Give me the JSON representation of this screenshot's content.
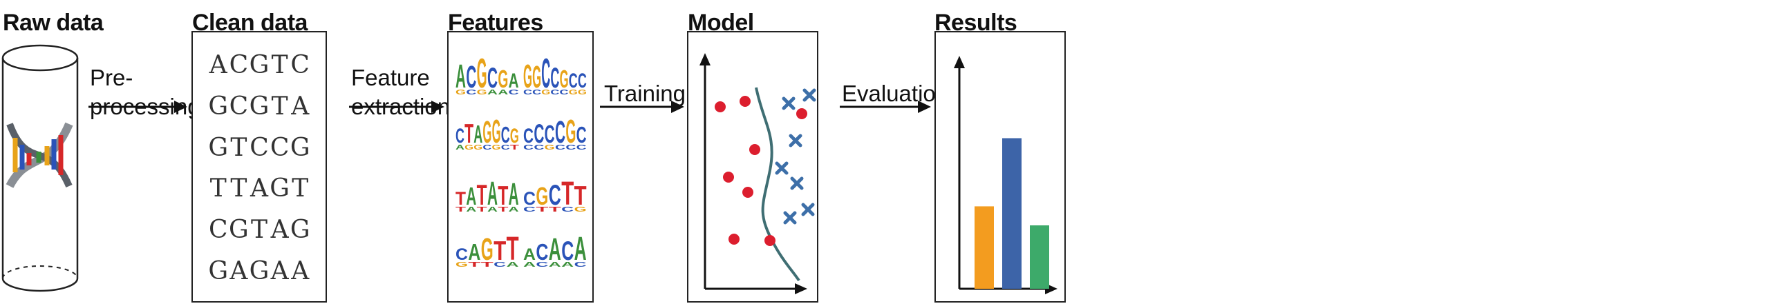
{
  "stages": {
    "raw": {
      "title": "Raw data"
    },
    "clean": {
      "title": "Clean data"
    },
    "features": {
      "title": "Features"
    },
    "model": {
      "title": "Model"
    },
    "results": {
      "title": "Results"
    }
  },
  "transitions": {
    "preprocessing": {
      "line1": "Pre-",
      "line2": "processing"
    },
    "feature_extraction": {
      "line1": "Feature",
      "line2": "extraction"
    },
    "training": {
      "line1": "Training"
    },
    "evaluation": {
      "line1": "Evaluation"
    }
  },
  "sequences": [
    [
      "A",
      "C",
      "G",
      "T",
      "C"
    ],
    [
      "G",
      "C",
      "G",
      "T",
      "A"
    ],
    [
      "G",
      "T",
      "C",
      "C",
      "G"
    ],
    [
      "T",
      "T",
      "A",
      "G",
      "T"
    ],
    [
      "C",
      "G",
      "T",
      "A",
      "G"
    ],
    [
      "G",
      "A",
      "G",
      "A",
      "A"
    ]
  ],
  "motifs": [
    [
      [
        "A",
        "#3b8f3b"
      ],
      [
        "C",
        "#2a53b8"
      ],
      [
        "G",
        "#e8a319"
      ],
      [
        "C",
        "#2a53b8"
      ],
      [
        "G",
        "#e8a319"
      ],
      [
        "A",
        "#3b8f3b"
      ]
    ],
    [
      [
        "G",
        "#e8a319"
      ],
      [
        "G",
        "#e8a319"
      ],
      [
        "C",
        "#2a53b8"
      ],
      [
        "C",
        "#2a53b8"
      ],
      [
        "G",
        "#e8a319"
      ],
      [
        "C",
        "#2a53b8"
      ],
      [
        "C",
        "#2a53b8"
      ]
    ],
    [
      [
        "C",
        "#2a53b8"
      ],
      [
        "T",
        "#d62728"
      ],
      [
        "A",
        "#3b8f3b"
      ],
      [
        "G",
        "#e8a319"
      ],
      [
        "G",
        "#e8a319"
      ],
      [
        "C",
        "#2a53b8"
      ],
      [
        "G",
        "#e8a319"
      ]
    ],
    [
      [
        "C",
        "#2a53b8"
      ],
      [
        "C",
        "#2a53b8"
      ],
      [
        "C",
        "#2a53b8"
      ],
      [
        "C",
        "#2a53b8"
      ],
      [
        "G",
        "#e8a319"
      ],
      [
        "C",
        "#2a53b8"
      ]
    ],
    [
      [
        "T",
        "#d62728"
      ],
      [
        "A",
        "#3b8f3b"
      ],
      [
        "T",
        "#d62728"
      ],
      [
        "A",
        "#3b8f3b"
      ],
      [
        "T",
        "#d62728"
      ],
      [
        "A",
        "#3b8f3b"
      ]
    ],
    [
      [
        "C",
        "#2a53b8"
      ],
      [
        "G",
        "#e8a319"
      ],
      [
        "C",
        "#2a53b8"
      ],
      [
        "T",
        "#d62728"
      ],
      [
        "T",
        "#d62728"
      ]
    ],
    [
      [
        "C",
        "#2a53b8"
      ],
      [
        "A",
        "#3b8f3b"
      ],
      [
        "G",
        "#e8a319"
      ],
      [
        "T",
        "#d62728"
      ],
      [
        "T",
        "#d62728"
      ]
    ],
    [
      [
        "A",
        "#3b8f3b"
      ],
      [
        "C",
        "#2a53b8"
      ],
      [
        "A",
        "#3b8f3b"
      ],
      [
        "C",
        "#2a53b8"
      ],
      [
        "A",
        "#3b8f3b"
      ]
    ]
  ],
  "results": {
    "bars": [
      {
        "value": 0.52,
        "color": "#f39c1f"
      },
      {
        "value": 0.95,
        "color": "#3d64a8"
      },
      {
        "value": 0.4,
        "color": "#3daa6a"
      }
    ]
  },
  "model": {
    "circle_color": "#dc1e2e",
    "cross_color": "#3d6fa8",
    "boundary_color": "#3f6e73"
  }
}
